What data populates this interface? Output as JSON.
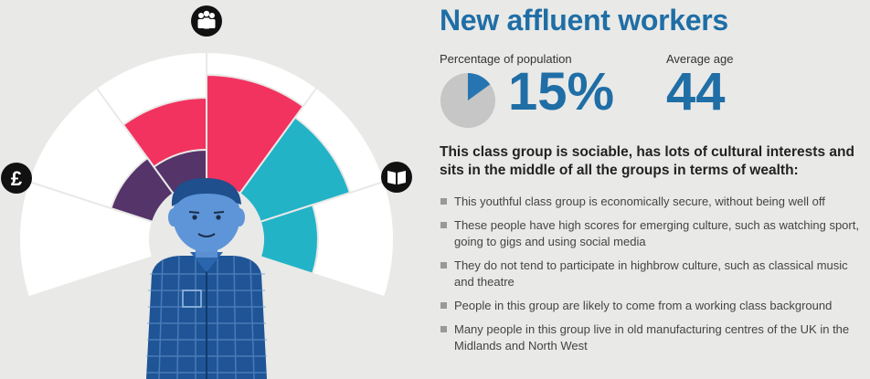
{
  "title": "New affluent workers",
  "stats": {
    "percentage_label": "Percentage of population",
    "percentage_value": "15%",
    "percentage_fraction": 0.15,
    "age_label": "Average age",
    "age_value": "44"
  },
  "description": "This class group is sociable, has lots of cultural interests and sits in the middle of all the groups in terms of wealth:",
  "bullets": [
    "This youthful class group is economically secure, without being well off",
    "These people have high scores for emerging culture, such as watching sport, going to gigs and using social media",
    "They do not tend to participate in highbrow culture, such as classical music and theatre",
    "People in this group are likely to come from a working class background",
    "Many people in this group live in old manufacturing centres of the UK in the Midlands and North West"
  ],
  "icons": {
    "social": "people-icon",
    "economic": "pound-icon",
    "cultural": "book-icon"
  },
  "colors": {
    "title": "#1f6ea6",
    "social": "#f2335f",
    "cultural": "#23b3c7",
    "economic": "#553469",
    "wedge_bg": "#ffffff",
    "pie_fill": "#2675b2",
    "pie_bg": "#c5c6c5",
    "shirt": "#1f5596"
  }
}
